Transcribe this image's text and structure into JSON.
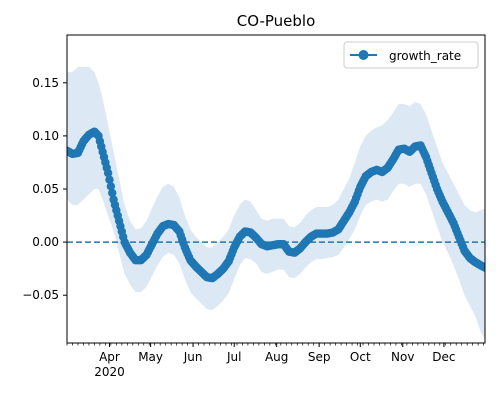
{
  "chart_data": {
    "type": "line",
    "title": "CO-Pueblo",
    "xlabel": "",
    "ylabel": "",
    "x_axis": {
      "type": "date",
      "range": [
        "2020-03-01",
        "2020-12-31"
      ],
      "ticks": [
        {
          "date": "2020-04-01",
          "label": "Apr"
        },
        {
          "date": "2020-05-01",
          "label": "May"
        },
        {
          "date": "2020-06-01",
          "label": "Jun"
        },
        {
          "date": "2020-07-01",
          "label": "Jul"
        },
        {
          "date": "2020-08-01",
          "label": "Aug"
        },
        {
          "date": "2020-09-01",
          "label": "Sep"
        },
        {
          "date": "2020-10-01",
          "label": "Oct"
        },
        {
          "date": "2020-11-01",
          "label": "Nov"
        },
        {
          "date": "2020-12-01",
          "label": "Dec"
        }
      ],
      "year_label": "2020"
    },
    "ylim": [
      -0.095,
      0.195
    ],
    "yticks": [
      {
        "value": -0.05,
        "label": "−0.05"
      },
      {
        "value": 0.0,
        "label": "0.00"
      },
      {
        "value": 0.05,
        "label": "0.05"
      },
      {
        "value": 0.1,
        "label": "0.10"
      },
      {
        "value": 0.15,
        "label": "0.15"
      }
    ],
    "grid": false,
    "legend": {
      "position": "top-right",
      "entries": [
        "growth_rate"
      ]
    },
    "reference_line": {
      "y": 0.0,
      "style": "dashed"
    },
    "colors": {
      "line": "#1f77b4",
      "band": "#dce9f5"
    },
    "series": [
      {
        "name": "growth_rate",
        "points": [
          {
            "x": "2020-03-01",
            "y": 0.086,
            "lo": 0.04,
            "hi": 0.16
          },
          {
            "x": "2020-03-05",
            "y": 0.083,
            "lo": 0.035,
            "hi": 0.16
          },
          {
            "x": "2020-03-09",
            "y": 0.084,
            "lo": 0.035,
            "hi": 0.165
          },
          {
            "x": "2020-03-13",
            "y": 0.095,
            "lo": 0.04,
            "hi": 0.165
          },
          {
            "x": "2020-03-17",
            "y": 0.101,
            "lo": 0.045,
            "hi": 0.165
          },
          {
            "x": "2020-03-21",
            "y": 0.104,
            "lo": 0.05,
            "hi": 0.16
          },
          {
            "x": "2020-03-24",
            "y": 0.1,
            "lo": 0.05,
            "hi": 0.15
          },
          {
            "x": "2020-03-27",
            "y": 0.085,
            "lo": 0.04,
            "hi": 0.135
          },
          {
            "x": "2020-03-31",
            "y": 0.065,
            "lo": 0.025,
            "hi": 0.11
          },
          {
            "x": "2020-04-04",
            "y": 0.04,
            "lo": 0.01,
            "hi": 0.085
          },
          {
            "x": "2020-04-08",
            "y": 0.02,
            "lo": -0.01,
            "hi": 0.06
          },
          {
            "x": "2020-04-12",
            "y": 0.0,
            "lo": -0.03,
            "hi": 0.035
          },
          {
            "x": "2020-04-16",
            "y": -0.01,
            "lo": -0.04,
            "hi": 0.02
          },
          {
            "x": "2020-04-20",
            "y": -0.017,
            "lo": -0.047,
            "hi": 0.012
          },
          {
            "x": "2020-04-24",
            "y": -0.017,
            "lo": -0.047,
            "hi": 0.013
          },
          {
            "x": "2020-04-28",
            "y": -0.012,
            "lo": -0.042,
            "hi": 0.02
          },
          {
            "x": "2020-05-02",
            "y": -0.002,
            "lo": -0.032,
            "hi": 0.032
          },
          {
            "x": "2020-05-06",
            "y": 0.008,
            "lo": -0.022,
            "hi": 0.043
          },
          {
            "x": "2020-05-10",
            "y": 0.015,
            "lo": -0.014,
            "hi": 0.052
          },
          {
            "x": "2020-05-14",
            "y": 0.017,
            "lo": -0.01,
            "hi": 0.055
          },
          {
            "x": "2020-05-18",
            "y": 0.016,
            "lo": -0.012,
            "hi": 0.052
          },
          {
            "x": "2020-05-22",
            "y": 0.01,
            "lo": -0.02,
            "hi": 0.042
          },
          {
            "x": "2020-05-26",
            "y": -0.005,
            "lo": -0.035,
            "hi": 0.025
          },
          {
            "x": "2020-05-30",
            "y": -0.017,
            "lo": -0.047,
            "hi": 0.012
          },
          {
            "x": "2020-06-03",
            "y": -0.023,
            "lo": -0.053,
            "hi": 0.005
          },
          {
            "x": "2020-06-07",
            "y": -0.028,
            "lo": -0.058,
            "hi": 0.0
          },
          {
            "x": "2020-06-11",
            "y": -0.033,
            "lo": -0.063,
            "hi": -0.005
          },
          {
            "x": "2020-06-15",
            "y": -0.034,
            "lo": -0.064,
            "hi": -0.005
          },
          {
            "x": "2020-06-19",
            "y": -0.03,
            "lo": -0.06,
            "hi": 0.0
          },
          {
            "x": "2020-06-23",
            "y": -0.025,
            "lo": -0.055,
            "hi": 0.005
          },
          {
            "x": "2020-06-27",
            "y": -0.018,
            "lo": -0.048,
            "hi": 0.012
          },
          {
            "x": "2020-07-01",
            "y": -0.005,
            "lo": -0.035,
            "hi": 0.025
          },
          {
            "x": "2020-07-05",
            "y": 0.005,
            "lo": -0.022,
            "hi": 0.035
          },
          {
            "x": "2020-07-09",
            "y": 0.01,
            "lo": -0.015,
            "hi": 0.04
          },
          {
            "x": "2020-07-13",
            "y": 0.009,
            "lo": -0.016,
            "hi": 0.038
          },
          {
            "x": "2020-07-17",
            "y": 0.004,
            "lo": -0.02,
            "hi": 0.03
          },
          {
            "x": "2020-07-21",
            "y": -0.002,
            "lo": -0.028,
            "hi": 0.022
          },
          {
            "x": "2020-07-25",
            "y": -0.004,
            "lo": -0.03,
            "hi": 0.02
          },
          {
            "x": "2020-07-29",
            "y": -0.003,
            "lo": -0.028,
            "hi": 0.022
          },
          {
            "x": "2020-08-02",
            "y": -0.002,
            "lo": -0.026,
            "hi": 0.022
          },
          {
            "x": "2020-08-06",
            "y": -0.002,
            "lo": -0.026,
            "hi": 0.022
          },
          {
            "x": "2020-08-10",
            "y": -0.009,
            "lo": -0.033,
            "hi": 0.015
          },
          {
            "x": "2020-08-14",
            "y": -0.01,
            "lo": -0.034,
            "hi": 0.014
          },
          {
            "x": "2020-08-18",
            "y": -0.006,
            "lo": -0.03,
            "hi": 0.018
          },
          {
            "x": "2020-08-22",
            "y": 0.0,
            "lo": -0.024,
            "hi": 0.025
          },
          {
            "x": "2020-08-26",
            "y": 0.005,
            "lo": -0.019,
            "hi": 0.03
          },
          {
            "x": "2020-08-30",
            "y": 0.008,
            "lo": -0.016,
            "hi": 0.033
          },
          {
            "x": "2020-09-03",
            "y": 0.008,
            "lo": -0.016,
            "hi": 0.033
          },
          {
            "x": "2020-09-07",
            "y": 0.008,
            "lo": -0.015,
            "hi": 0.033
          },
          {
            "x": "2020-09-11",
            "y": 0.009,
            "lo": -0.014,
            "hi": 0.035
          },
          {
            "x": "2020-09-15",
            "y": 0.012,
            "lo": -0.012,
            "hi": 0.04
          },
          {
            "x": "2020-09-19",
            "y": 0.02,
            "lo": -0.005,
            "hi": 0.05
          },
          {
            "x": "2020-09-23",
            "y": 0.028,
            "lo": 0.003,
            "hi": 0.06
          },
          {
            "x": "2020-09-27",
            "y": 0.038,
            "lo": 0.012,
            "hi": 0.075
          },
          {
            "x": "2020-10-01",
            "y": 0.052,
            "lo": 0.025,
            "hi": 0.09
          },
          {
            "x": "2020-10-05",
            "y": 0.062,
            "lo": 0.035,
            "hi": 0.1
          },
          {
            "x": "2020-10-09",
            "y": 0.066,
            "lo": 0.038,
            "hi": 0.105
          },
          {
            "x": "2020-10-13",
            "y": 0.068,
            "lo": 0.04,
            "hi": 0.108
          },
          {
            "x": "2020-10-17",
            "y": 0.066,
            "lo": 0.038,
            "hi": 0.11
          },
          {
            "x": "2020-10-21",
            "y": 0.07,
            "lo": 0.04,
            "hi": 0.115
          },
          {
            "x": "2020-10-25",
            "y": 0.078,
            "lo": 0.048,
            "hi": 0.122
          },
          {
            "x": "2020-10-29",
            "y": 0.087,
            "lo": 0.055,
            "hi": 0.13
          },
          {
            "x": "2020-11-02",
            "y": 0.088,
            "lo": 0.055,
            "hi": 0.13
          },
          {
            "x": "2020-11-06",
            "y": 0.085,
            "lo": 0.052,
            "hi": 0.128
          },
          {
            "x": "2020-11-10",
            "y": 0.09,
            "lo": 0.055,
            "hi": 0.132
          },
          {
            "x": "2020-11-14",
            "y": 0.091,
            "lo": 0.055,
            "hi": 0.13
          },
          {
            "x": "2020-11-18",
            "y": 0.08,
            "lo": 0.045,
            "hi": 0.12
          },
          {
            "x": "2020-11-22",
            "y": 0.065,
            "lo": 0.03,
            "hi": 0.105
          },
          {
            "x": "2020-11-26",
            "y": 0.05,
            "lo": 0.015,
            "hi": 0.09
          },
          {
            "x": "2020-11-30",
            "y": 0.038,
            "lo": 0.0,
            "hi": 0.075
          },
          {
            "x": "2020-12-04",
            "y": 0.028,
            "lo": -0.01,
            "hi": 0.065
          },
          {
            "x": "2020-12-08",
            "y": 0.018,
            "lo": -0.022,
            "hi": 0.055
          },
          {
            "x": "2020-12-12",
            "y": 0.005,
            "lo": -0.035,
            "hi": 0.045
          },
          {
            "x": "2020-12-16",
            "y": -0.008,
            "lo": -0.05,
            "hi": 0.035
          },
          {
            "x": "2020-12-20",
            "y": -0.015,
            "lo": -0.06,
            "hi": 0.03
          },
          {
            "x": "2020-12-24",
            "y": -0.019,
            "lo": -0.07,
            "hi": 0.028
          },
          {
            "x": "2020-12-28",
            "y": -0.022,
            "lo": -0.085,
            "hi": 0.03
          },
          {
            "x": "2020-12-31",
            "y": -0.024,
            "lo": -0.092,
            "hi": 0.032
          }
        ]
      }
    ]
  }
}
